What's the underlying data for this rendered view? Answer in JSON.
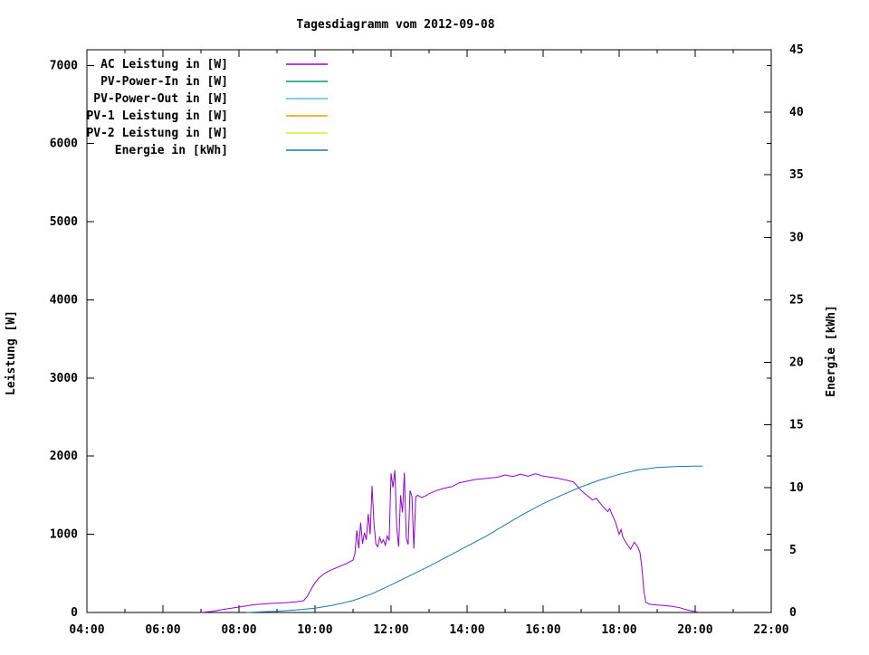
{
  "title": "Tagesdiagramm vom 2012-09-08",
  "chart_data": {
    "type": "line",
    "title": "Tagesdiagramm vom 2012-09-08",
    "grid": false,
    "legend_position": "top-left-inside",
    "x_axis": {
      "tick_labels": [
        "04:00",
        "06:00",
        "08:00",
        "10:00",
        "12:00",
        "14:00",
        "16:00",
        "18:00",
        "20:00",
        "22:00"
      ],
      "tick_hours": [
        4,
        6,
        8,
        10,
        12,
        14,
        16,
        18,
        20,
        22
      ],
      "minor_tick_hours": [
        5,
        7,
        9,
        11,
        13,
        15,
        17,
        19,
        21
      ],
      "range_hours": [
        4,
        22
      ]
    },
    "y_left": {
      "label": "Leistung [W]",
      "tick_values": [
        0,
        1000,
        2000,
        3000,
        4000,
        5000,
        6000,
        7000
      ],
      "tick_labels": [
        "0",
        "1000",
        "2000",
        "3000",
        "4000",
        "5000",
        "6000",
        "7000"
      ],
      "range": [
        0,
        7200
      ]
    },
    "y_right": {
      "label": "Energie [kWh]",
      "tick_values": [
        0,
        5,
        10,
        15,
        20,
        25,
        30,
        35,
        40,
        45
      ],
      "tick_labels": [
        "0",
        "5",
        "10",
        "15",
        "20",
        "25",
        "30",
        "35",
        "40",
        "45"
      ],
      "range": [
        0,
        45
      ]
    },
    "series": [
      {
        "name": "AC Leistung in [W]",
        "color": "#9400D3",
        "axis": "left",
        "points": [
          [
            7.0,
            0
          ],
          [
            7.3,
            15
          ],
          [
            7.6,
            40
          ],
          [
            8.0,
            70
          ],
          [
            8.4,
            100
          ],
          [
            8.8,
            115
          ],
          [
            9.2,
            125
          ],
          [
            9.5,
            135
          ],
          [
            9.7,
            150
          ],
          [
            9.8,
            210
          ],
          [
            9.9,
            300
          ],
          [
            10.0,
            380
          ],
          [
            10.1,
            440
          ],
          [
            10.25,
            500
          ],
          [
            10.4,
            540
          ],
          [
            10.6,
            580
          ],
          [
            10.8,
            620
          ],
          [
            11.0,
            670
          ],
          [
            11.05,
            750
          ],
          [
            11.1,
            1050
          ],
          [
            11.15,
            820
          ],
          [
            11.2,
            1150
          ],
          [
            11.25,
            880
          ],
          [
            11.3,
            1020
          ],
          [
            11.35,
            930
          ],
          [
            11.4,
            1260
          ],
          [
            11.45,
            1000
          ],
          [
            11.5,
            1620
          ],
          [
            11.55,
            1150
          ],
          [
            11.6,
            880
          ],
          [
            11.65,
            840
          ],
          [
            11.7,
            960
          ],
          [
            11.75,
            890
          ],
          [
            11.8,
            930
          ],
          [
            11.85,
            860
          ],
          [
            11.9,
            980
          ],
          [
            11.95,
            920
          ],
          [
            12.0,
            1780
          ],
          [
            12.05,
            1600
          ],
          [
            12.1,
            1820
          ],
          [
            12.15,
            1080
          ],
          [
            12.2,
            840
          ],
          [
            12.25,
            1500
          ],
          [
            12.3,
            1280
          ],
          [
            12.35,
            1790
          ],
          [
            12.4,
            950
          ],
          [
            12.45,
            870
          ],
          [
            12.5,
            1560
          ],
          [
            12.55,
            1480
          ],
          [
            12.6,
            820
          ],
          [
            12.65,
            1480
          ],
          [
            12.7,
            1500
          ],
          [
            12.8,
            1470
          ],
          [
            12.9,
            1490
          ],
          [
            13.0,
            1520
          ],
          [
            13.2,
            1560
          ],
          [
            13.4,
            1590
          ],
          [
            13.6,
            1610
          ],
          [
            13.8,
            1660
          ],
          [
            14.0,
            1680
          ],
          [
            14.2,
            1700
          ],
          [
            14.4,
            1710
          ],
          [
            14.6,
            1720
          ],
          [
            14.8,
            1730
          ],
          [
            15.0,
            1760
          ],
          [
            15.2,
            1740
          ],
          [
            15.4,
            1770
          ],
          [
            15.6,
            1745
          ],
          [
            15.8,
            1775
          ],
          [
            16.0,
            1745
          ],
          [
            16.2,
            1730
          ],
          [
            16.4,
            1715
          ],
          [
            16.6,
            1695
          ],
          [
            16.8,
            1670
          ],
          [
            17.0,
            1560
          ],
          [
            17.1,
            1520
          ],
          [
            17.2,
            1480
          ],
          [
            17.3,
            1440
          ],
          [
            17.4,
            1460
          ],
          [
            17.5,
            1400
          ],
          [
            17.6,
            1340
          ],
          [
            17.7,
            1290
          ],
          [
            17.75,
            1330
          ],
          [
            17.8,
            1270
          ],
          [
            17.9,
            1160
          ],
          [
            18.0,
            1000
          ],
          [
            18.05,
            1060
          ],
          [
            18.1,
            960
          ],
          [
            18.2,
            880
          ],
          [
            18.3,
            810
          ],
          [
            18.4,
            900
          ],
          [
            18.5,
            830
          ],
          [
            18.55,
            760
          ],
          [
            18.6,
            560
          ],
          [
            18.65,
            280
          ],
          [
            18.7,
            130
          ],
          [
            18.8,
            105
          ],
          [
            19.0,
            95
          ],
          [
            19.2,
            88
          ],
          [
            19.4,
            78
          ],
          [
            19.6,
            60
          ],
          [
            19.8,
            30
          ],
          [
            20.0,
            12
          ],
          [
            20.1,
            0
          ]
        ]
      },
      {
        "name": "PV-Power-In in [W]",
        "color": "#009A77",
        "axis": "left",
        "points": []
      },
      {
        "name": "PV-Power-Out in [W]",
        "color": "#63B8E8",
        "axis": "left",
        "points": []
      },
      {
        "name": "PV-1 Leistung in [W]",
        "color": "#E0A000",
        "axis": "left",
        "points": []
      },
      {
        "name": "PV-2 Leistung in [W]",
        "color": "#EDE13F",
        "axis": "left",
        "points": []
      },
      {
        "name": "Energie in [kWh]",
        "color": "#1B76B2",
        "axis": "right",
        "points": [
          [
            8.2,
            0
          ],
          [
            8.6,
            0.05
          ],
          [
            9.0,
            0.1
          ],
          [
            9.5,
            0.2
          ],
          [
            10.0,
            0.35
          ],
          [
            10.5,
            0.6
          ],
          [
            11.0,
            0.95
          ],
          [
            11.5,
            1.5
          ],
          [
            12.0,
            2.2
          ],
          [
            12.5,
            2.95
          ],
          [
            13.0,
            3.7
          ],
          [
            13.5,
            4.5
          ],
          [
            14.0,
            5.3
          ],
          [
            14.5,
            6.1
          ],
          [
            15.0,
            7.0
          ],
          [
            15.5,
            7.9
          ],
          [
            16.0,
            8.7
          ],
          [
            16.5,
            9.4
          ],
          [
            17.0,
            10.05
          ],
          [
            17.5,
            10.6
          ],
          [
            18.0,
            11.05
          ],
          [
            18.5,
            11.4
          ],
          [
            19.0,
            11.6
          ],
          [
            19.5,
            11.68
          ],
          [
            20.0,
            11.7
          ],
          [
            20.2,
            11.7
          ]
        ]
      }
    ]
  }
}
